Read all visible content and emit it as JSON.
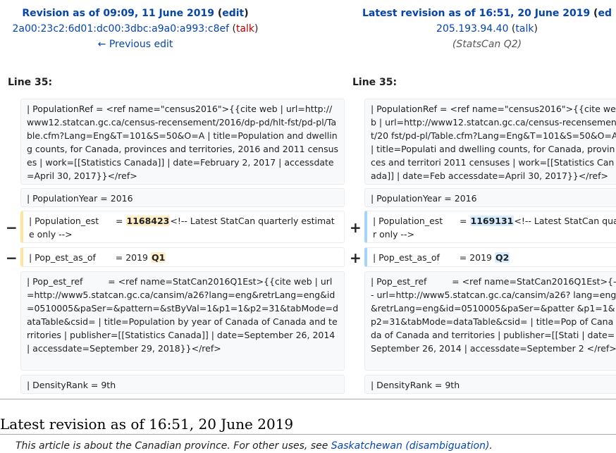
{
  "left": {
    "title_prefix": "Revision as of 09:09, 11 June 2019",
    "edit": "edit",
    "user": "2a00:23c2:6d01:dc00:3dbc:a9a0:a993:c8ef",
    "talk": "talk",
    "prev": "← Previous edit",
    "line": "Line 35:"
  },
  "right": {
    "title_prefix": "Latest revision as of 16:51, 20 June 2019",
    "edit": "ed",
    "user": "205.193.94.40",
    "talk": "talk",
    "summary": "(StatsCan Q2)",
    "line": "Line 35:"
  },
  "rows": {
    "ctx1": "| PopulationRef = <ref name=\"census2016\">{{cite web | url=http://www12.statcan.gc.ca/census-recensement/2016/dp-pd/hlt-fst/pd-pl/Table.cfm?Lang=Eng&T=101&S=50&O=A | title=Population and dwelling counts, for Canada, provinces and territories, 2016 and 2011 censuses | work=[[Statistics Canada]] | date=February 2, 2017 | accessdate=April 30, 2017}}</ref>",
    "ctx1_right": "| PopulationRef = <ref name=\"census2016\">{{cite web | url=http://www12.statcan.gc.ca/census-recensement/20 fst/pd-pl/Table.cfm?Lang=Eng&T=101&S=50&O=A | title=Populati and dwelling counts, for Canada, provinces and territori 2011 censuses | work=[[Statistics Canada]] | date=Feb accessdate=April 30, 2017}}</ref>",
    "ctx2": "| PopulationYear = 2016",
    "pop_est_prefix": "| Population_est      = ",
    "pop_est_old": "1168423",
    "pop_est_new": "1169131",
    "pop_est_suffix": "<!-- Latest StatCan quarterly estimate only -->",
    "pop_est_suffix_right": "<!-- Latest StatCan quar only -->",
    "pop_asof_prefix": "| Pop_est_as_of       = 2019 ",
    "pop_asof_old": "Q1",
    "pop_asof_new": "Q2",
    "ctx3": "| Pop_est_ref         = <ref name=StatCan2016Q1Est>{{cite web | url=http://www5.statcan.gc.ca/cansim/a26?lang=eng&retrLang=eng&id=0510005&paSer=&pattern=&stByVal=1&p1=1&p2=31&tabMode=dataTable&csid= | title=Population by year of Canada of Canada and territories | publisher=[[Statistics Canada]] | date=September 26, 2014 | accessdate=September 29, 2018}}</ref>",
    "ctx3_right": "| Pop_est_ref         = <ref name=StatCan2016Q1Est>{-- url=http://www5.statcan.gc.ca/cansim/a26? lang=eng&retrLang=eng&id=0510005&paSer=&patter &p1=1&p2=31&tabMode=dataTable&csid= | title=Pop of Canada of Canada and territories | publisher=[[Stati | date=September 26, 2014 | accessdate=September 2 </ref>",
    "ctx4": "| DensityRank = 9th"
  },
  "markers": {
    "minus": "−",
    "plus": "+"
  },
  "bottom": {
    "title": "Latest revision as of 16:51, 20 June 2019",
    "hatnote_prefix": "This article is about the Canadian province. For other uses, see ",
    "hatnote_link": "Saskatchewan (disambiguation)",
    "hatnote_suffix": "."
  }
}
